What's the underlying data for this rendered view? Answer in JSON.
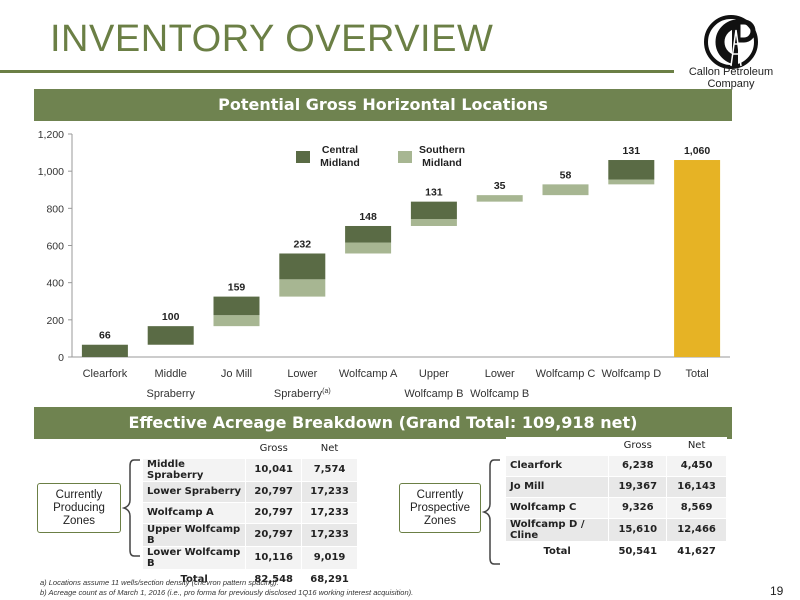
{
  "title": "INVENTORY OVERVIEW",
  "logo": {
    "text_line1": "Callon Petroleum",
    "text_line2": "Company",
    "mark": "CP"
  },
  "banner1": "Potential Gross Horizontal Locations",
  "banner2": "Effective Acreage Breakdown (Grand Total: 109,918 net)",
  "colors": {
    "central": "#5a6b45",
    "southern": "#a7b692",
    "total": "#e6b325",
    "banner": "#6f8350"
  },
  "chart_data": {
    "type": "bar",
    "subtype": "waterfall",
    "ylim": [
      0,
      1200
    ],
    "yticks": [
      "0",
      "200",
      "400",
      "600",
      "800",
      "1,000",
      "1,200"
    ],
    "legend": [
      {
        "name": "Central\nMidland",
        "color": "#5a6b45"
      },
      {
        "name": "Southern\nMidland",
        "color": "#a7b692"
      }
    ],
    "categories": [
      {
        "label1": "Clearfork",
        "label2": "",
        "central": 66,
        "southern": 0,
        "total_label": "66"
      },
      {
        "label1": "Middle",
        "label2": "Spraberry",
        "central": 100,
        "southern": 0,
        "total_label": "100"
      },
      {
        "label1": "Jo Mill",
        "label2": "",
        "central": 100,
        "southern": 59,
        "total_label": "159"
      },
      {
        "label1": "Lower",
        "label2": "Spraberry(a)",
        "central": 139,
        "southern": 93,
        "total_label": "232"
      },
      {
        "label1": "Wolfcamp A",
        "label2": "",
        "central": 89,
        "southern": 59,
        "total_label": "148"
      },
      {
        "label1": "Upper",
        "label2": "Wolfcamp B",
        "central": 94,
        "southern": 37,
        "total_label": "131"
      },
      {
        "label1": "Lower",
        "label2": "Wolfcamp B",
        "central": 0,
        "southern": 35,
        "total_label": "35"
      },
      {
        "label1": "Wolfcamp C",
        "label2": "",
        "central": 0,
        "southern": 58,
        "total_label": "58"
      },
      {
        "label1": "Wolfcamp D",
        "label2": "",
        "central": 105,
        "southern": 26,
        "total_label": "131"
      },
      {
        "label1": "Total",
        "label2": "",
        "total": 1060,
        "total_label": "1,060"
      }
    ]
  },
  "producing": {
    "zone_label": "Currently\nProducing\nZones",
    "headers": [
      "",
      "Gross",
      "Net"
    ],
    "rows": [
      [
        "Middle Spraberry",
        "10,041",
        "7,574"
      ],
      [
        "Lower Spraberry",
        "20,797",
        "17,233"
      ],
      [
        "Wolfcamp A",
        "20,797",
        "17,233"
      ],
      [
        "Upper Wolfcamp B",
        "20,797",
        "17,233"
      ],
      [
        "Lower Wolfcamp B",
        "10,116",
        "9,019"
      ]
    ],
    "total": [
      "Total",
      "82,548",
      "68,291"
    ]
  },
  "prospective": {
    "zone_label": "Currently\nProspective\nZones",
    "headers": [
      "",
      "Gross",
      "Net"
    ],
    "rows": [
      [
        "Clearfork",
        "6,238",
        "4,450"
      ],
      [
        "Jo Mill",
        "19,367",
        "16,143"
      ],
      [
        "Wolfcamp C",
        "9,326",
        "8,569"
      ],
      [
        "Wolfcamp D / Cline",
        "15,610",
        "12,466"
      ]
    ],
    "total": [
      "Total",
      "50,541",
      "41,627"
    ]
  },
  "footnotes": [
    "a)    Locations assume 11 wells/section density (chevron pattern spacing).",
    "b)    Acreage count as of March 1, 2016 (i.e., pro forma for previously disclosed 1Q16 working interest acquisition)."
  ],
  "page_number": "19"
}
